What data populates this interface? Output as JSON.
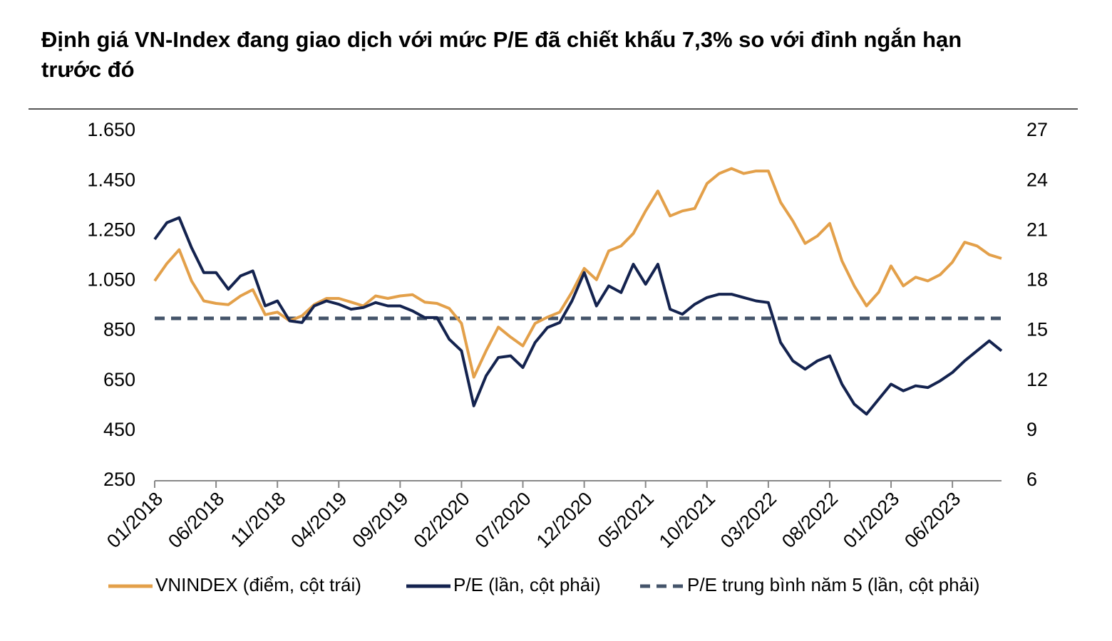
{
  "chart_data": {
    "type": "line",
    "title": "Định giá VN-Index đang giao dịch với mức P/E đã chiết khấu 7,3% so với đỉnh ngắn hạn trước đó",
    "categories": [
      "01/2018",
      null,
      null,
      null,
      null,
      "06/2018",
      null,
      null,
      null,
      null,
      "11/2018",
      null,
      null,
      null,
      null,
      "04/2019",
      null,
      null,
      null,
      null,
      "09/2019",
      null,
      null,
      null,
      null,
      "02/2020",
      null,
      null,
      null,
      null,
      "07/2020",
      null,
      null,
      null,
      null,
      "12/2020",
      null,
      null,
      null,
      null,
      "05/2021",
      null,
      null,
      null,
      null,
      "10/2021",
      null,
      null,
      null,
      null,
      "03/2022",
      null,
      null,
      null,
      null,
      "08/2022",
      null,
      null,
      null,
      null,
      "01/2023",
      null,
      null,
      null,
      null,
      "06/2023",
      null,
      null,
      null,
      null
    ],
    "series": [
      {
        "name": "VNINDEX (điểm, cột trái)",
        "color": "#e3a04a",
        "axis": "y",
        "values": [
          1050,
          1120,
          1175,
          1050,
          970,
          960,
          955,
          990,
          1015,
          915,
          925,
          890,
          910,
          955,
          980,
          980,
          965,
          950,
          990,
          980,
          990,
          995,
          965,
          960,
          940,
          880,
          665,
          770,
          865,
          825,
          790,
          880,
          905,
          925,
          1005,
          1100,
          1055,
          1170,
          1190,
          1240,
          1330,
          1410,
          1310,
          1330,
          1340,
          1440,
          1480,
          1500,
          1480,
          1490,
          1490,
          1365,
          1290,
          1200,
          1230,
          1280,
          1130,
          1030,
          950,
          1005,
          1110,
          1030,
          1065,
          1050,
          1075,
          1125,
          1205,
          1190,
          1155,
          1140
        ]
      },
      {
        "name": "P/E (lần, cột phải)",
        "color": "#14234f",
        "axis": "y2",
        "values": [
          20.5,
          21.5,
          21.8,
          20,
          18.5,
          18.5,
          17.5,
          18.3,
          18.6,
          16.5,
          16.8,
          15.6,
          15.5,
          16.5,
          16.8,
          16.6,
          16.3,
          16.4,
          16.7,
          16.5,
          16.5,
          16.2,
          15.8,
          15.8,
          14.5,
          13.8,
          10.5,
          12.3,
          13.4,
          13.5,
          12.8,
          14.3,
          15.2,
          15.5,
          16.8,
          18.5,
          16.5,
          17.7,
          17.3,
          19,
          17.8,
          19,
          16.3,
          16,
          16.6,
          17,
          17.2,
          17.2,
          17,
          16.8,
          16.7,
          14.3,
          13.2,
          12.7,
          13.2,
          13.5,
          11.8,
          10.6,
          10,
          10.9,
          11.8,
          11.4,
          11.7,
          11.6,
          12,
          12.5,
          13.2,
          13.8,
          14.4,
          13.8
        ]
      }
    ],
    "reference_lines": [
      {
        "name": "P/E trung bình năm 5 (lần, cột phải)",
        "color": "#44546a",
        "axis": "y2",
        "value": 15.75,
        "dashed": true
      }
    ],
    "ylim": [
      250,
      1650
    ],
    "yticks": [
      {
        "value": 250,
        "label": "250"
      },
      {
        "value": 450,
        "label": "450"
      },
      {
        "value": 650,
        "label": "650"
      },
      {
        "value": 850,
        "label": "850"
      },
      {
        "value": 1050,
        "label": "1.050"
      },
      {
        "value": 1250,
        "label": "1.250"
      },
      {
        "value": 1450,
        "label": "1.450"
      },
      {
        "value": 1650,
        "label": "1.650"
      }
    ],
    "y2lim": [
      6,
      27
    ],
    "y2ticks": [
      6,
      9,
      12,
      15,
      18,
      21,
      24,
      27
    ],
    "legend": "bottom"
  }
}
